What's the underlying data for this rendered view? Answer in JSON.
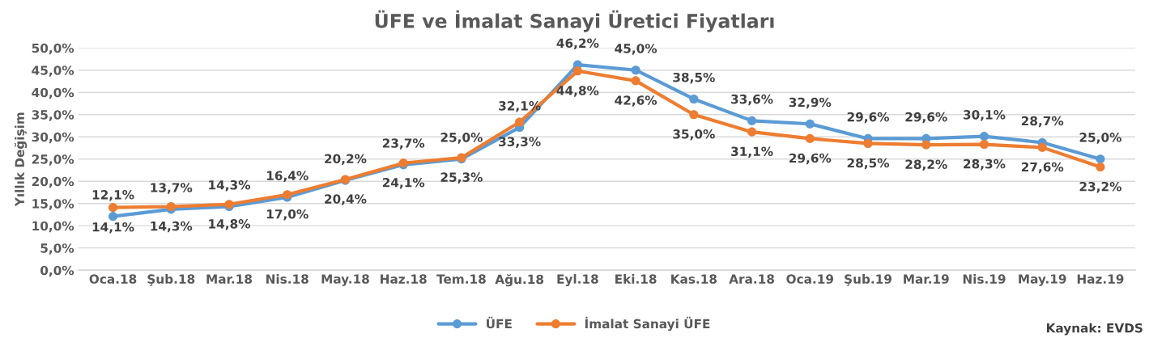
{
  "chart_data": {
    "type": "line",
    "title": "ÜFE ve İmalat Sanayi Üretici Fiyatları",
    "ylabel": "Yıllık Değişim",
    "categories": [
      "Oca.18",
      "Şub.18",
      "Mar.18",
      "Nis.18",
      "May.18",
      "Haz.18",
      "Tem.18",
      "Ağu.18",
      "Eyl.18",
      "Eki.18",
      "Kas.18",
      "Ara.18",
      "Oca.19",
      "Şub.19",
      "Mar.19",
      "Nis.19",
      "May.19",
      "Haz.19"
    ],
    "series": [
      {
        "name": "ÜFE",
        "color": "#5b9bd5",
        "values": [
          12.1,
          13.7,
          14.3,
          16.4,
          20.2,
          23.7,
          25.0,
          32.1,
          46.2,
          45.0,
          38.5,
          33.6,
          32.9,
          29.6,
          29.6,
          30.1,
          28.7,
          25.0
        ],
        "value_labels": [
          "12,1%",
          "13,7%",
          "14,3%",
          "16,4%",
          "20,2%",
          "23,7%",
          "25,0%",
          "32,1%",
          "46,2%",
          "45,0%",
          "38,5%",
          "33,6%",
          "32,9%",
          "29,6%",
          "29,6%",
          "30,1%",
          "28,7%",
          "25,0%"
        ]
      },
      {
        "name": "İmalat Sanayi ÜFE",
        "color": "#ed7d31",
        "values": [
          14.1,
          14.3,
          14.8,
          17.0,
          20.4,
          24.1,
          25.3,
          33.3,
          44.8,
          42.6,
          35.0,
          31.1,
          29.6,
          28.5,
          28.2,
          28.3,
          27.6,
          23.2
        ],
        "value_labels": [
          "14,1%",
          "14,3%",
          "14,8%",
          "17,0%",
          "20,4%",
          "24,1%",
          "25,3%",
          "33,3%",
          "44,8%",
          "42,6%",
          "35,0%",
          "31,1%",
          "29,6%",
          "28,5%",
          "28,2%",
          "28,3%",
          "27,6%",
          "23,2%"
        ]
      }
    ],
    "ylim": [
      0,
      50
    ],
    "yticks": [
      {
        "value": 0,
        "label": "0,0%"
      },
      {
        "value": 5,
        "label": "5,0%"
      },
      {
        "value": 10,
        "label": "10,0%"
      },
      {
        "value": 15,
        "label": "15,0%"
      },
      {
        "value": 20,
        "label": "20,0%"
      },
      {
        "value": 25,
        "label": "25,0%"
      },
      {
        "value": 30,
        "label": "30,0%"
      },
      {
        "value": 35,
        "label": "35,0%"
      },
      {
        "value": 40,
        "label": "40,0%"
      },
      {
        "value": 45,
        "label": "45,0%"
      },
      {
        "value": 50,
        "label": "50,0%"
      }
    ],
    "grid": "y",
    "legend": "bottom",
    "marker": "circle",
    "line_style": "solid",
    "annotations": [
      "Kaynak: EVDS"
    ]
  }
}
